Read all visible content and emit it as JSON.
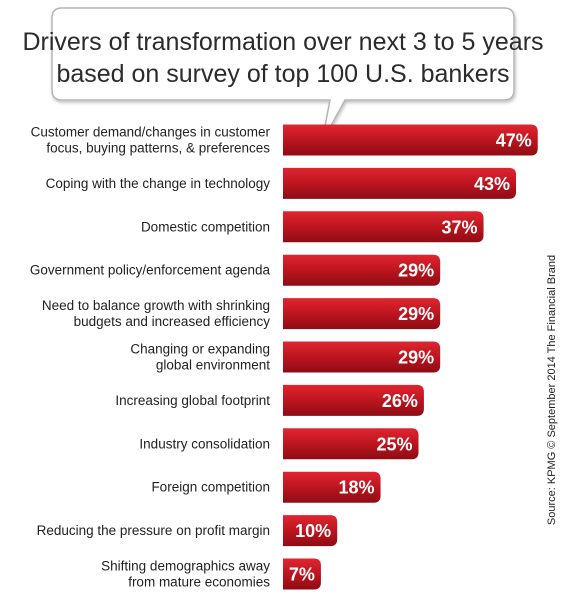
{
  "chart_data": {
    "type": "bar",
    "orientation": "horizontal",
    "title_lines": [
      "Drivers of transformation over next 3 to 5 years",
      "based on survey of top 100 U.S. bankers"
    ],
    "categories": [
      [
        "Customer demand/changes in customer",
        "focus, buying patterns, & preferences"
      ],
      [
        "Coping with the change in technology"
      ],
      [
        "Domestic competition"
      ],
      [
        "Government policy/enforcement agenda"
      ],
      [
        "Need to balance growth with shrinking",
        "budgets and increased efficiency"
      ],
      [
        "Changing or expanding",
        "global environment"
      ],
      [
        "Increasing global footprint"
      ],
      [
        "Industry consolidation"
      ],
      [
        "Foreign competition"
      ],
      [
        "Reducing the pressure on profit margin"
      ],
      [
        "Shifting demographics away",
        "from mature economies"
      ]
    ],
    "values": [
      47,
      43,
      37,
      29,
      29,
      29,
      26,
      25,
      18,
      10,
      7
    ],
    "value_labels": [
      "47%",
      "43%",
      "37%",
      "29%",
      "29%",
      "29%",
      "26%",
      "25%",
      "18%",
      "10%",
      "7%"
    ],
    "unit": "%",
    "source": "Source: KPMG © September 2014 The Financial Brand",
    "colors": {
      "bar_light": "#e02530",
      "bar_dark": "#8e0c14",
      "text": "#222222",
      "bubble_border": "#b5b5b5"
    }
  }
}
